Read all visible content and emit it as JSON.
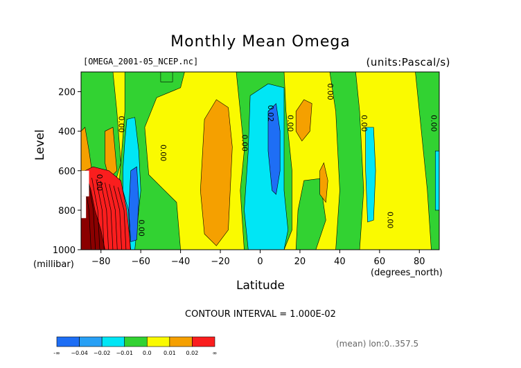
{
  "header": {
    "title": "Monthly Mean Omega",
    "file": "[OMEGA_2001-05_NCEP.nc]",
    "units": "(units:Pascal/s)"
  },
  "footer": {
    "contour_interval": "CONTOUR INTERVAL = 1.000E-02",
    "mean_note": "(mean) lon:0..357.5"
  },
  "chart_data": {
    "type": "heatmap",
    "title": "Monthly Mean Omega",
    "xlabel": "Latitude",
    "x_unit": "(degrees_north)",
    "ylabel": "Level",
    "y_unit": "(millibar)",
    "xlim": [
      -90,
      90
    ],
    "ylim": [
      1000,
      100
    ],
    "x_ticks": [
      -80,
      -60,
      -40,
      -20,
      0,
      20,
      40,
      60,
      80
    ],
    "y_ticks": [
      200,
      400,
      600,
      800,
      1000
    ],
    "contour_labels": [
      {
        "text": "0.00",
        "lat": -71,
        "lev": 365
      },
      {
        "text": "0.00",
        "lat": -50,
        "lev": 510
      },
      {
        "text": "0.00",
        "lat": -9,
        "lev": 460
      },
      {
        "text": "0.02",
        "lat": 4,
        "lev": 310
      },
      {
        "text": "0.00",
        "lat": 14,
        "lev": 360
      },
      {
        "text": "0.00",
        "lat": 34,
        "lev": 200
      },
      {
        "text": "0.00",
        "lat": 51,
        "lev": 360
      },
      {
        "text": "0.00",
        "lat": 64,
        "lev": 850
      },
      {
        "text": "0.00",
        "lat": 86,
        "lev": 360
      },
      {
        "text": "0.00",
        "lat": -61,
        "lev": 890
      },
      {
        "text": "0.00",
        "lat": -82,
        "lev": 660
      }
    ],
    "colorbar": {
      "colors": [
        "#1e6ef5",
        "#28a0f5",
        "#00e6f5",
        "#32d232",
        "#fafa00",
        "#f5a000",
        "#fa1e1e"
      ],
      "labels": [
        "-∞",
        "−0.04",
        "−0.02",
        "−0.01",
        "0.0",
        "0.01",
        "0.02",
        "∞"
      ]
    },
    "level_colors": {
      "neg_strong": "#1e6ef5",
      "neg_mid": "#00e6f5",
      "near_zero_neg": "#32d232",
      "near_zero_pos": "#fafa00",
      "pos_mid": "#f5a000",
      "pos_strong": "#fa1e1e",
      "extreme": "#8b0000"
    }
  }
}
